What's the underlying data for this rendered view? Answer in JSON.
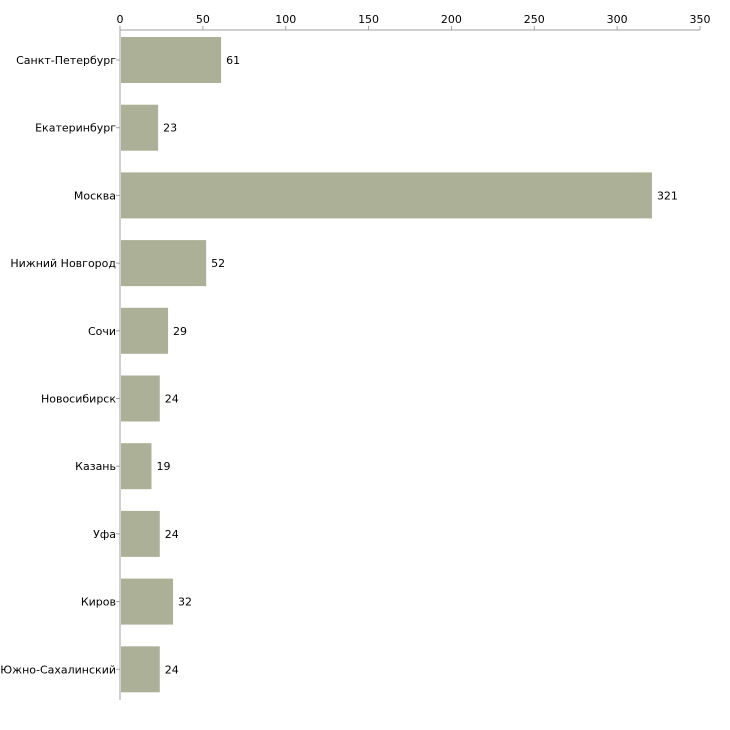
{
  "chart_data": {
    "type": "bar",
    "orientation": "horizontal",
    "title": "",
    "xlabel": "",
    "ylabel": "",
    "categories": [
      "Санкт-Петербург",
      "Екатеринбург",
      "Москва",
      "Нижний Новгород",
      "Сочи",
      "Новосибирск",
      "Казань",
      "Уфа",
      "Киров",
      "Южно-Сахалинский"
    ],
    "values": [
      61,
      23,
      321,
      52,
      29,
      24,
      19,
      24,
      32,
      24
    ],
    "xlim": [
      0,
      350
    ],
    "xticks": [
      0,
      50,
      100,
      150,
      200,
      250,
      300,
      350
    ],
    "axis_position": "top",
    "grid": false,
    "legend": "none",
    "bar_color": "#abb096",
    "show_value_labels": true
  }
}
